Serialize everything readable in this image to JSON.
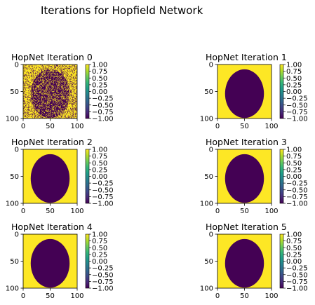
{
  "figure": {
    "suptitle": "Iterations for Hopfield Network"
  },
  "colormap": {
    "name": "viridis",
    "stops": [
      "#440154",
      "#482878",
      "#3e4989",
      "#31688e",
      "#26828e",
      "#1f9e89",
      "#35b779",
      "#6ece58",
      "#b5de2b",
      "#fde725"
    ],
    "low_color": "#440154",
    "high_color": "#fde725"
  },
  "chart_data": [
    {
      "type": "heatmap",
      "title": "HopNet Iteration 0",
      "xlim": [
        0,
        100
      ],
      "ylim": [
        100,
        0
      ],
      "x_ticks": [
        "0",
        "50",
        "100"
      ],
      "y_ticks": [
        "0",
        "50",
        "100"
      ],
      "colorbar_range": [
        -1.0,
        1.0
      ],
      "colorbar_ticks": [
        "1.00",
        "0.75",
        "0.50",
        "0.25",
        "0.00",
        "−0.25",
        "−0.50",
        "−0.75",
        "−1.00"
      ],
      "values": [
        "+1 outside ellipse",
        "-1 inside ellipse"
      ],
      "ellipse_center": [
        50,
        54
      ],
      "ellipse_radii": [
        36,
        45
      ],
      "noise_fraction": 0.25
    },
    {
      "type": "heatmap",
      "title": "HopNet Iteration 1",
      "xlim": [
        0,
        100
      ],
      "ylim": [
        100,
        0
      ],
      "x_ticks": [
        "0",
        "50",
        "100"
      ],
      "y_ticks": [
        "0",
        "50",
        "100"
      ],
      "colorbar_range": [
        -1.0,
        1.0
      ],
      "colorbar_ticks": [
        "1.00",
        "0.75",
        "0.50",
        "0.25",
        "0.00",
        "−0.25",
        "−0.50",
        "−0.75",
        "−1.00"
      ],
      "values": [
        "+1 outside ellipse",
        "-1 inside ellipse"
      ],
      "ellipse_center": [
        50,
        54
      ],
      "ellipse_radii": [
        36,
        45
      ],
      "noise_fraction": 0
    },
    {
      "type": "heatmap",
      "title": "HopNet Iteration 2",
      "xlim": [
        0,
        100
      ],
      "ylim": [
        100,
        0
      ],
      "x_ticks": [
        "0",
        "50",
        "100"
      ],
      "y_ticks": [
        "0",
        "50",
        "100"
      ],
      "colorbar_range": [
        -1.0,
        1.0
      ],
      "colorbar_ticks": [
        "1.00",
        "0.75",
        "0.50",
        "0.25",
        "0.00",
        "−0.25",
        "−0.50",
        "−0.75",
        "−1.00"
      ],
      "values": [
        "+1 outside ellipse",
        "-1 inside ellipse"
      ],
      "ellipse_center": [
        50,
        54
      ],
      "ellipse_radii": [
        36,
        45
      ],
      "noise_fraction": 0
    },
    {
      "type": "heatmap",
      "title": "HopNet Iteration 3",
      "xlim": [
        0,
        100
      ],
      "ylim": [
        100,
        0
      ],
      "x_ticks": [
        "0",
        "50",
        "100"
      ],
      "y_ticks": [
        "0",
        "50",
        "100"
      ],
      "colorbar_range": [
        -1.0,
        1.0
      ],
      "colorbar_ticks": [
        "1.00",
        "0.75",
        "0.50",
        "0.25",
        "0.00",
        "−0.25",
        "−0.50",
        "−0.75",
        "−1.00"
      ],
      "values": [
        "+1 outside ellipse",
        "-1 inside ellipse"
      ],
      "ellipse_center": [
        50,
        54
      ],
      "ellipse_radii": [
        36,
        45
      ],
      "noise_fraction": 0
    },
    {
      "type": "heatmap",
      "title": "HopNet Iteration 4",
      "xlim": [
        0,
        100
      ],
      "ylim": [
        100,
        0
      ],
      "x_ticks": [
        "0",
        "50",
        "100"
      ],
      "y_ticks": [
        "0",
        "50",
        "100"
      ],
      "colorbar_range": [
        -1.0,
        1.0
      ],
      "colorbar_ticks": [
        "1.00",
        "0.75",
        "0.50",
        "0.25",
        "0.00",
        "−0.25",
        "−0.50",
        "−0.75",
        "−1.00"
      ],
      "values": [
        "+1 outside ellipse",
        "-1 inside ellipse"
      ],
      "ellipse_center": [
        50,
        54
      ],
      "ellipse_radii": [
        36,
        45
      ],
      "noise_fraction": 0
    },
    {
      "type": "heatmap",
      "title": "HopNet Iteration 5",
      "xlim": [
        0,
        100
      ],
      "ylim": [
        100,
        0
      ],
      "x_ticks": [
        "0",
        "50",
        "100"
      ],
      "y_ticks": [
        "0",
        "50",
        "100"
      ],
      "colorbar_range": [
        -1.0,
        1.0
      ],
      "colorbar_ticks": [
        "1.00",
        "0.75",
        "0.50",
        "0.25",
        "0.00",
        "−0.25",
        "−0.50",
        "−0.75",
        "−1.00"
      ],
      "values": [
        "+1 outside ellipse",
        "-1 inside ellipse"
      ],
      "ellipse_center": [
        50,
        54
      ],
      "ellipse_radii": [
        36,
        45
      ],
      "noise_fraction": 0
    }
  ]
}
